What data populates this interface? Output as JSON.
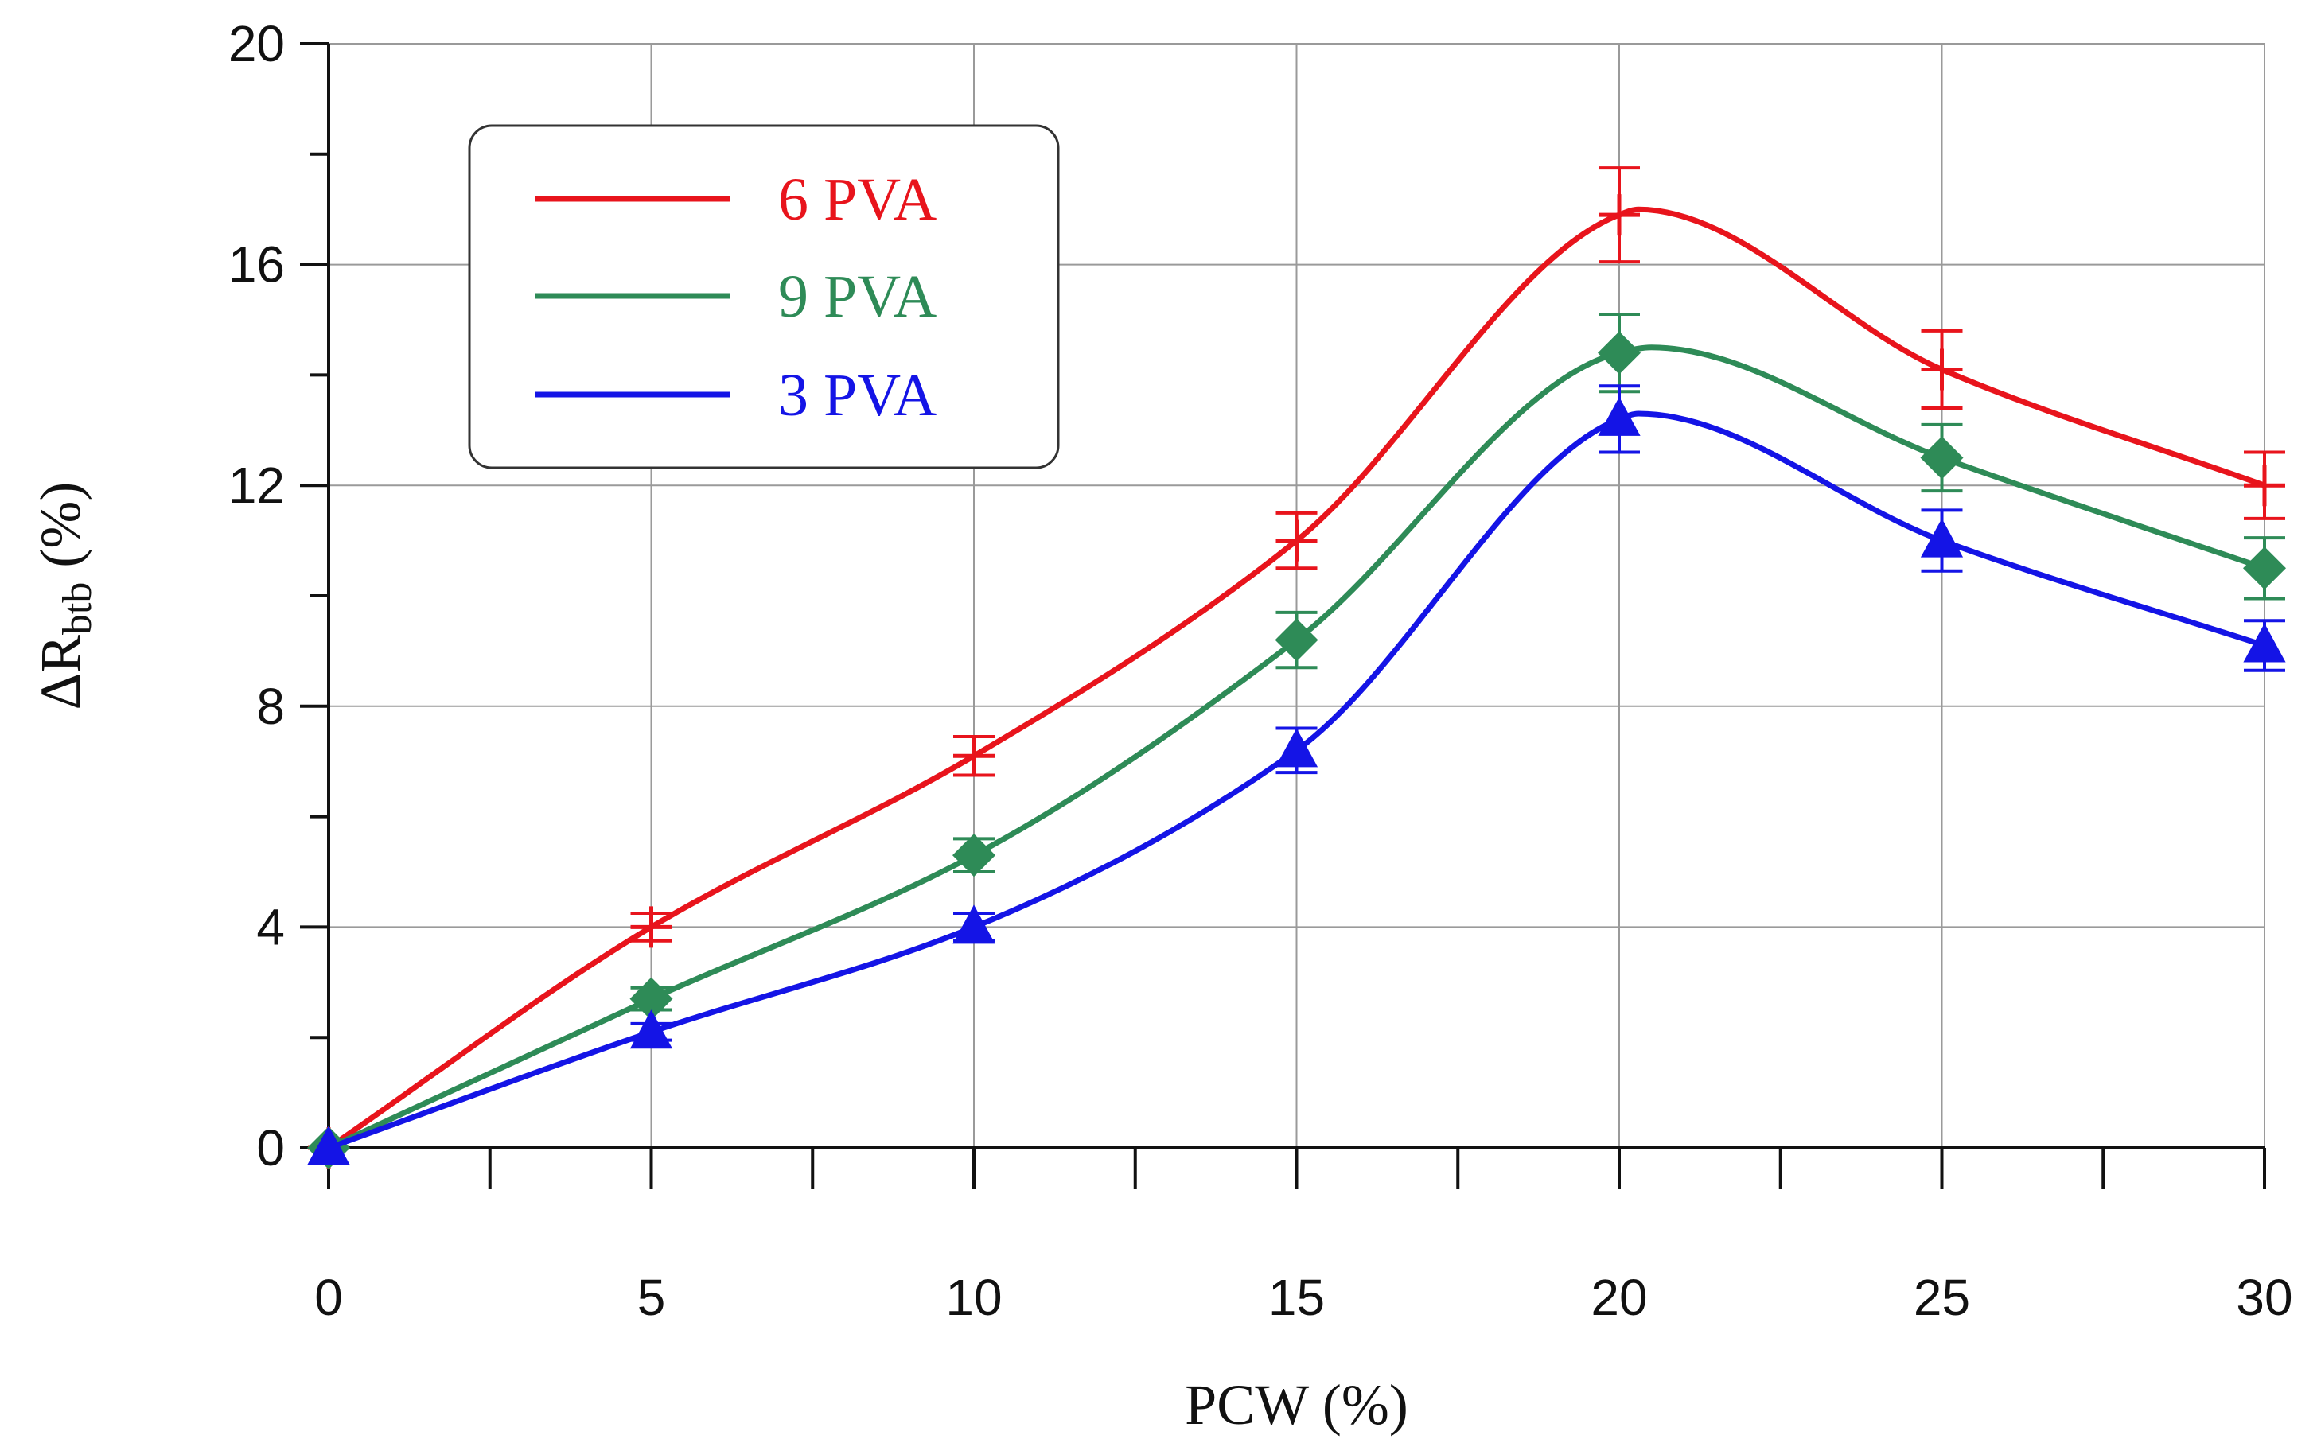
{
  "chart_data": {
    "type": "line",
    "title": "",
    "xlabel": "PCW (%)",
    "ylabel": {
      "prefix": "ΔR",
      "subscript": "btb",
      "suffix": " (%)"
    },
    "xlim": [
      0,
      30
    ],
    "ylim": [
      0,
      20
    ],
    "xticks": [
      0,
      5,
      10,
      15,
      20,
      25,
      30
    ],
    "yticks": [
      0,
      4,
      8,
      12,
      16,
      20
    ],
    "xtick_labels": [
      "0",
      "5",
      "10",
      "15",
      "20",
      "25",
      "30"
    ],
    "ytick_labels": [
      "0",
      "4",
      "8",
      "12",
      "16",
      "20"
    ],
    "x_minor_step": 2.5,
    "y_minor_step": 2,
    "grid": true,
    "legend_position": "upper-left",
    "x": [
      0,
      5,
      10,
      15,
      20,
      25,
      30
    ],
    "series": [
      {
        "name": "6 PVA",
        "color": "#e8141c",
        "marker": "plus",
        "values": [
          0,
          4.0,
          7.1,
          11.0,
          16.9,
          14.1,
          12.0
        ],
        "errors": [
          0,
          0.25,
          0.35,
          0.5,
          0.85,
          0.7,
          0.6
        ],
        "smooth_peak": [
          20.3,
          17.0
        ]
      },
      {
        "name": "9 PVA",
        "color": "#2e8b57",
        "marker": "diamond",
        "values": [
          0,
          2.7,
          5.3,
          9.2,
          14.4,
          12.5,
          10.5
        ],
        "errors": [
          0,
          0.2,
          0.3,
          0.5,
          0.7,
          0.6,
          0.55
        ],
        "smooth_peak": [
          20.5,
          14.5
        ]
      },
      {
        "name": "3 PVA",
        "color": "#1414e6",
        "marker": "triangle",
        "values": [
          0,
          2.1,
          4.0,
          7.2,
          13.2,
          11.0,
          9.1
        ],
        "errors": [
          0,
          0.15,
          0.25,
          0.4,
          0.6,
          0.55,
          0.45
        ],
        "smooth_peak": [
          20.3,
          13.3
        ]
      }
    ]
  }
}
